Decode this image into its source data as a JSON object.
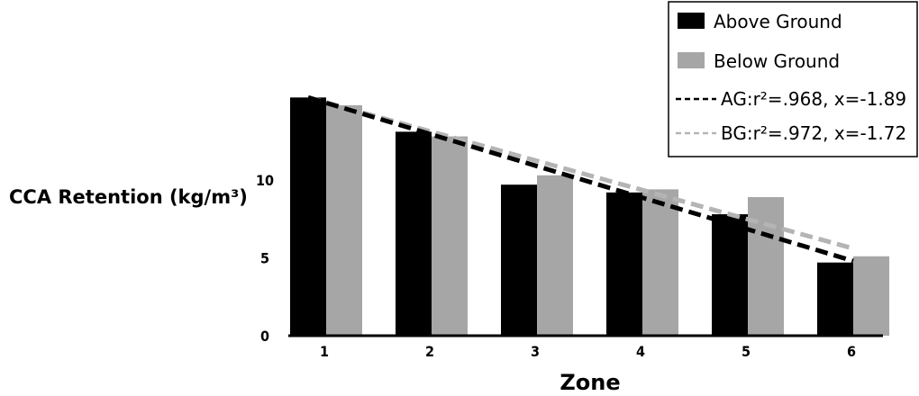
{
  "chart_data": {
    "type": "bar",
    "categories": [
      "1",
      "2",
      "3",
      "4",
      "5",
      "6"
    ],
    "series": [
      {
        "name": "Above Ground",
        "values": [
          15.3,
          13.1,
          9.7,
          9.2,
          7.8,
          4.7
        ],
        "color": "#000000"
      },
      {
        "name": "Below Ground",
        "values": [
          14.8,
          12.8,
          10.3,
          9.4,
          8.9,
          5.1
        ],
        "color": "#a6a6a6"
      }
    ],
    "trendlines": [
      {
        "name": "AG:r²=.968, x=-1.89",
        "from": [
          1,
          15.3
        ],
        "to": [
          6,
          4.8
        ],
        "color": "#000000",
        "style": "dashed"
      },
      {
        "name": "BG:r²=.972, x=-1.72",
        "from": [
          1,
          15.3
        ],
        "to": [
          6,
          5.6
        ],
        "color": "#b4b4b4",
        "style": "dashed"
      }
    ],
    "title": "",
    "xlabel": "Zone",
    "ylabel": "CCA Retention (kg/m³)",
    "yticks": [
      "0",
      "5",
      "10"
    ],
    "ylim": [
      0,
      16
    ],
    "legend_position": "top-right",
    "grid": false
  }
}
